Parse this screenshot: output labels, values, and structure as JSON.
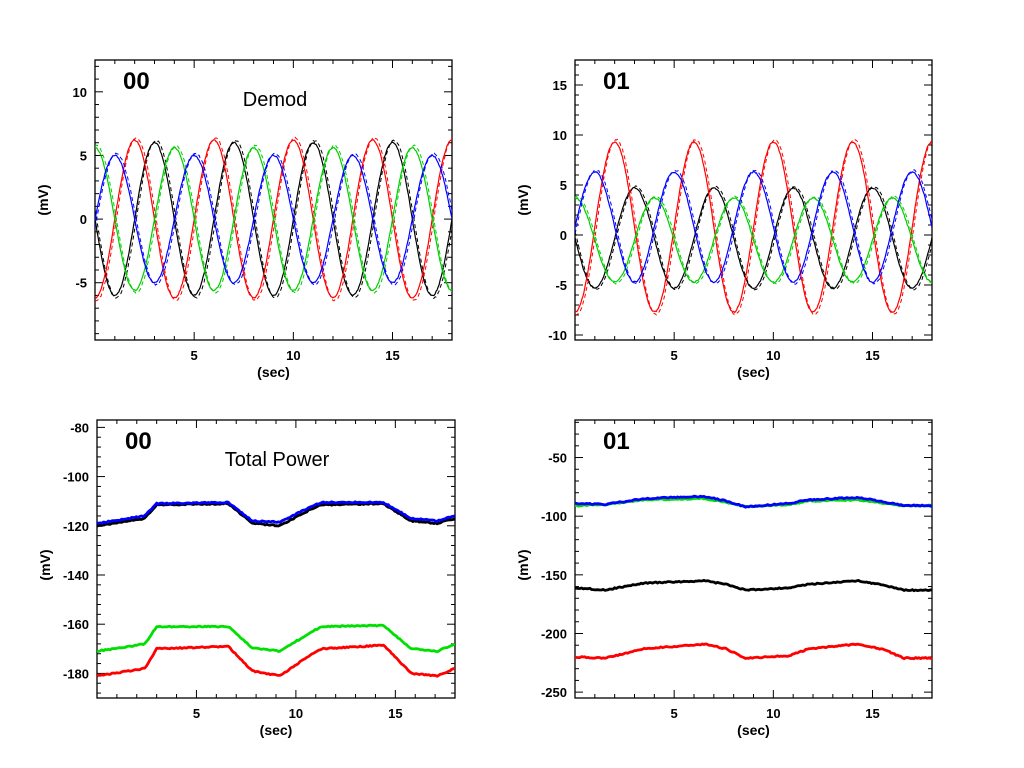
{
  "chart_data": [
    {
      "type": "line",
      "panel_label": "00",
      "annotation": "Demod",
      "xlabel": "(sec)",
      "ylabel": "(mV)",
      "xlim": [
        0,
        18
      ],
      "ylim": [
        -9.5,
        12.5
      ],
      "xticks": [
        5,
        10,
        15
      ],
      "yticks": [
        -5,
        0,
        5,
        10
      ],
      "line_style": "solid with dashed overlay",
      "series": [
        {
          "color": "#000000",
          "amplitude": 6.0,
          "period": 4.0,
          "phase": 3.14,
          "offset": 0.0
        },
        {
          "color": "#ff0000",
          "amplitude": 6.2,
          "period": 4.0,
          "phase": 4.71,
          "offset": 0.0
        },
        {
          "color": "#00cc00",
          "amplitude": 5.6,
          "period": 4.0,
          "phase": 1.57,
          "offset": 0.0
        },
        {
          "color": "#0000ff",
          "amplitude": 5.0,
          "period": 4.0,
          "phase": 0.0,
          "offset": 0.0
        }
      ]
    },
    {
      "type": "line",
      "panel_label": "01",
      "annotation": "",
      "xlabel": "(sec)",
      "ylabel": "(mV)",
      "xlim": [
        0,
        18
      ],
      "ylim": [
        -10.5,
        17.5
      ],
      "xticks": [
        5,
        10,
        15
      ],
      "yticks": [
        -10,
        -5,
        0,
        5,
        10,
        15
      ],
      "line_style": "solid with dashed overlay",
      "series": [
        {
          "color": "#000000",
          "amplitude": 5.0,
          "period": 4.0,
          "phase": 3.14,
          "offset": -0.3
        },
        {
          "color": "#ff0000",
          "amplitude": 8.5,
          "period": 4.0,
          "phase": 4.71,
          "offset": 0.8
        },
        {
          "color": "#00cc00",
          "amplitude": 4.2,
          "period": 4.0,
          "phase": 1.57,
          "offset": -0.5
        },
        {
          "color": "#0000ff",
          "amplitude": 5.5,
          "period": 4.0,
          "phase": 0.0,
          "offset": 0.8
        }
      ]
    },
    {
      "type": "line",
      "panel_label": "00",
      "annotation": "Total Power",
      "xlabel": "(sec)",
      "ylabel": "(mV)",
      "xlim": [
        0,
        18
      ],
      "ylim": [
        -190,
        -77
      ],
      "xticks": [
        5,
        10,
        15
      ],
      "yticks": [
        -180,
        -160,
        -140,
        -120,
        -100,
        -80
      ],
      "line_style": "solid thick",
      "series": [
        {
          "color": "#000000",
          "x": [
            0,
            2.4,
            3,
            6.6,
            7.8,
            9.2,
            10.8,
            11.3,
            14.4,
            15.8,
            17.1,
            18
          ],
          "y": [
            -120,
            -117,
            -111.5,
            -111,
            -119,
            -120,
            -113,
            -111.5,
            -111,
            -118,
            -119,
            -117
          ]
        },
        {
          "color": "#0000ff",
          "x": [
            0,
            2.4,
            3,
            6.6,
            7.8,
            9.2,
            10.8,
            11.3,
            14.4,
            15.8,
            17.1,
            18
          ],
          "y": [
            -119,
            -116,
            -111,
            -110.5,
            -118,
            -118.5,
            -112,
            -110.5,
            -110.5,
            -117,
            -118,
            -116
          ]
        },
        {
          "color": "#00e000",
          "x": [
            0,
            2.4,
            3,
            6.6,
            7.8,
            9.2,
            10.8,
            11.3,
            14.4,
            15.8,
            17.1,
            18
          ],
          "y": [
            -171,
            -168,
            -161,
            -161,
            -169.5,
            -171,
            -163,
            -161,
            -160.5,
            -170,
            -171,
            -168
          ]
        },
        {
          "color": "#ff0000",
          "x": [
            0,
            2.4,
            3,
            6.6,
            7.8,
            9.2,
            10.8,
            11.3,
            14.4,
            15.8,
            17.1,
            18
          ],
          "y": [
            -181,
            -178,
            -170,
            -169,
            -179,
            -181,
            -172,
            -170,
            -168.5,
            -180,
            -181,
            -178
          ]
        }
      ]
    },
    {
      "type": "line",
      "panel_label": "01",
      "annotation": "",
      "xlabel": "(sec)",
      "ylabel": "(mV)",
      "xlim": [
        0,
        18
      ],
      "ylim": [
        -255,
        -18
      ],
      "xticks": [
        5,
        10,
        15
      ],
      "yticks": [
        -250,
        -200,
        -150,
        -100,
        -50
      ],
      "line_style": "solid thick",
      "series": [
        {
          "color": "#00e000",
          "x": [
            0,
            1.5,
            3.5,
            6.5,
            7.6,
            8.6,
            10.8,
            11.8,
            14.3,
            15.6,
            16.6,
            18
          ],
          "y": [
            -91,
            -90,
            -86,
            -85,
            -88,
            -92,
            -90,
            -87,
            -86,
            -89,
            -91,
            -91
          ]
        },
        {
          "color": "#0000ff",
          "x": [
            0,
            1.5,
            3.5,
            6.5,
            7.6,
            8.6,
            10.8,
            11.8,
            14.3,
            15.6,
            16.6,
            18
          ],
          "y": [
            -89,
            -90,
            -85,
            -83,
            -87,
            -92,
            -89,
            -86,
            -84,
            -88,
            -91,
            -91
          ]
        },
        {
          "color": "#000000",
          "x": [
            0,
            1.5,
            3.5,
            6.5,
            7.6,
            8.6,
            10.8,
            11.8,
            14.3,
            15.6,
            16.6,
            18
          ],
          "y": [
            -161,
            -163,
            -157,
            -155,
            -158,
            -163,
            -161,
            -158,
            -155,
            -159,
            -163,
            -163
          ]
        },
        {
          "color": "#ff0000",
          "x": [
            0,
            1.5,
            3.5,
            6.5,
            7.6,
            8.6,
            10.8,
            11.8,
            14.3,
            15.6,
            16.6,
            18
          ],
          "y": [
            -220,
            -221,
            -213,
            -209,
            -213,
            -221,
            -219,
            -213,
            -209,
            -214,
            -221,
            -221
          ]
        }
      ]
    }
  ]
}
